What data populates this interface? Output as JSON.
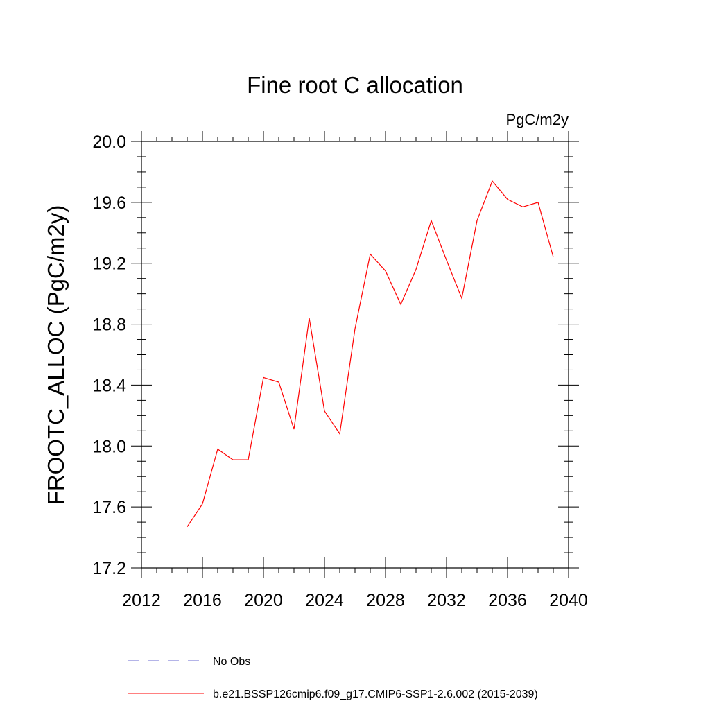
{
  "chart_data": {
    "type": "line",
    "title": "Fine root C allocation",
    "units": "PgC/m2y",
    "xlabel": "",
    "ylabel": "FROOTC_ALLOC  (PgC/m2y)",
    "xlim": [
      2012,
      2040
    ],
    "ylim": [
      17.2,
      20.0
    ],
    "x_ticks": [
      2012,
      2016,
      2020,
      2024,
      2028,
      2032,
      2036,
      2040
    ],
    "x_tick_labels": [
      "2012",
      "2016",
      "2020",
      "2024",
      "2028",
      "2032",
      "2036",
      "2040"
    ],
    "y_ticks": [
      17.2,
      17.6,
      18.0,
      18.4,
      18.8,
      19.2,
      19.6,
      20.0
    ],
    "y_tick_labels": [
      "17.2",
      "17.6",
      "18.0",
      "18.4",
      "18.8",
      "19.2",
      "19.6",
      "20.0"
    ],
    "series": [
      {
        "name": "b.e21.BSSP126cmip6.f09_g17.CMIP6-SSP1-2.6.002 (2015-2039)",
        "color": "#ff0000",
        "style": "solid",
        "x": [
          2015,
          2016,
          2017,
          2018,
          2019,
          2020,
          2021,
          2022,
          2023,
          2024,
          2025,
          2026,
          2027,
          2028,
          2029,
          2030,
          2031,
          2032,
          2033,
          2034,
          2035,
          2036,
          2037,
          2038,
          2039
        ],
        "values": [
          17.47,
          17.62,
          17.98,
          17.91,
          17.91,
          18.45,
          18.42,
          18.11,
          18.84,
          18.23,
          18.08,
          18.77,
          19.26,
          19.15,
          18.93,
          19.16,
          19.48,
          19.22,
          18.97,
          19.48,
          19.74,
          19.62,
          19.57,
          19.6,
          19.24
        ]
      }
    ],
    "legend": [
      {
        "label": "No Obs",
        "color": "#6a6ad0",
        "style": "dashed"
      },
      {
        "label": "b.e21.BSSP126cmip6.f09_g17.CMIP6-SSP1-2.6.002 (2015-2039)",
        "color": "#ff0000",
        "style": "solid"
      }
    ],
    "legend_position": "bottom"
  }
}
